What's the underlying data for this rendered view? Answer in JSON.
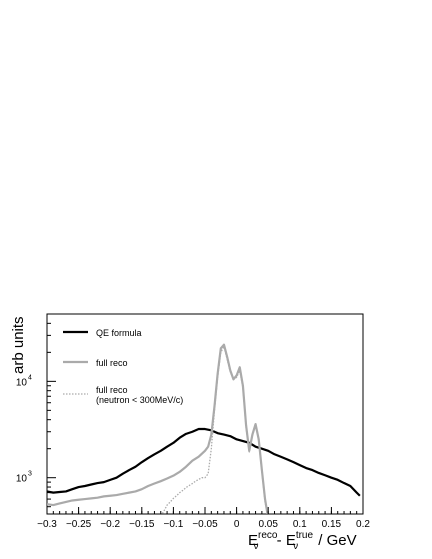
{
  "chart_data": {
    "type": "line",
    "title": "",
    "ylabel": "arb units",
    "xlabel": {
      "base": "E",
      "sub": "ν",
      "sup_reco": "reco",
      "sup_true": "true",
      "minus": " - ",
      "unit": " / GeV"
    },
    "x_scale": "linear",
    "y_scale": "log",
    "xlim": [
      -0.3,
      0.2
    ],
    "ylim": [
      420,
      50000
    ],
    "x_ticks": [
      -0.3,
      -0.25,
      -0.2,
      -0.15,
      -0.1,
      -0.05,
      0,
      0.05,
      0.1,
      0.15,
      0.2
    ],
    "x_tick_labels": [
      "−0.3",
      "−0.25",
      "−0.2",
      "−0.15",
      "−0.1",
      "−0.05",
      "0",
      "0.05",
      "0.1",
      "0.15",
      "0.2"
    ],
    "y_ticks": [
      {
        "value": 1000,
        "base": "10",
        "exp": "3"
      },
      {
        "value": 10000,
        "base": "10",
        "exp": "4"
      }
    ],
    "grid": false,
    "legend_position": "top-left",
    "legend": [
      {
        "label_lines": [
          "QE formula"
        ],
        "color": "#000000",
        "dash": "none",
        "width": 2.2
      },
      {
        "label_lines": [
          "full reco"
        ],
        "color": "#aaaaaa",
        "dash": "none",
        "width": 2.2
      },
      {
        "label_lines": [
          "full reco",
          "(neutron < 300MeV/c)"
        ],
        "color": "#aaaaaa",
        "dash": "1.5,1.5",
        "width": 1.3
      }
    ],
    "series": [
      {
        "name": "QE formula",
        "color": "#000000",
        "dash": "none",
        "width": 2.2,
        "x": [
          -0.3,
          -0.29,
          -0.28,
          -0.27,
          -0.26,
          -0.25,
          -0.24,
          -0.23,
          -0.22,
          -0.21,
          -0.2,
          -0.19,
          -0.18,
          -0.17,
          -0.16,
          -0.15,
          -0.14,
          -0.13,
          -0.12,
          -0.11,
          -0.1,
          -0.09,
          -0.08,
          -0.07,
          -0.06,
          -0.05,
          -0.04,
          -0.03,
          -0.02,
          -0.01,
          0,
          0.01,
          0.02,
          0.03,
          0.04,
          0.05,
          0.06,
          0.07,
          0.08,
          0.09,
          0.1,
          0.11,
          0.12,
          0.13,
          0.14,
          0.15,
          0.16,
          0.17,
          0.18,
          0.19,
          0.195
        ],
        "y": [
          720,
          700,
          710,
          720,
          760,
          800,
          820,
          850,
          880,
          900,
          950,
          1000,
          1100,
          1200,
          1300,
          1450,
          1600,
          1750,
          1900,
          2100,
          2300,
          2600,
          2850,
          3000,
          3200,
          3200,
          3100,
          2900,
          2800,
          2700,
          2500,
          2400,
          2300,
          2100,
          2000,
          1900,
          1750,
          1650,
          1550,
          1450,
          1350,
          1260,
          1200,
          1120,
          1060,
          1000,
          950,
          880,
          820,
          700,
          650
        ]
      },
      {
        "name": "full reco",
        "color": "#aaaaaa",
        "dash": "none",
        "width": 2.2,
        "x": [
          -0.3,
          -0.29,
          -0.28,
          -0.27,
          -0.26,
          -0.25,
          -0.24,
          -0.23,
          -0.22,
          -0.21,
          -0.2,
          -0.19,
          -0.18,
          -0.17,
          -0.16,
          -0.15,
          -0.14,
          -0.13,
          -0.12,
          -0.11,
          -0.1,
          -0.09,
          -0.08,
          -0.07,
          -0.06,
          -0.05,
          -0.045,
          -0.04,
          -0.035,
          -0.03,
          -0.025,
          -0.02,
          -0.015,
          -0.01,
          -0.005,
          0,
          0.005,
          0.01,
          0.015,
          0.02,
          0.025,
          0.03,
          0.035,
          0.04,
          0.045,
          0.05
        ],
        "y": [
          530,
          520,
          540,
          560,
          580,
          590,
          600,
          610,
          620,
          640,
          650,
          660,
          680,
          700,
          720,
          760,
          820,
          870,
          920,
          980,
          1050,
          1150,
          1300,
          1500,
          1650,
          1900,
          2100,
          2800,
          5500,
          12000,
          22000,
          24000,
          18000,
          13000,
          10500,
          11500,
          14000,
          9000,
          3500,
          1900,
          2800,
          3600,
          2500,
          1200,
          600,
          380
        ]
      },
      {
        "name": "full reco (neutron < 300MeV/c)",
        "color": "#aaaaaa",
        "dash": "1.5,1.5",
        "width": 1.3,
        "x": [
          -0.12,
          -0.115,
          -0.11,
          -0.105,
          -0.1,
          -0.095,
          -0.09,
          -0.085,
          -0.08,
          -0.075,
          -0.07,
          -0.065,
          -0.06,
          -0.055,
          -0.05,
          -0.045,
          -0.04,
          -0.035,
          -0.03,
          -0.025,
          -0.02,
          -0.015,
          -0.01,
          -0.005,
          0,
          0.005,
          0.01,
          0.015,
          0.02,
          0.025,
          0.03,
          0.035,
          0.04,
          0.045,
          0.05
        ],
        "y": [
          400,
          450,
          520,
          560,
          610,
          650,
          700,
          740,
          790,
          830,
          870,
          920,
          960,
          1000,
          1000,
          1100,
          2000,
          5000,
          11000,
          20000,
          23000,
          17000,
          12500,
          10500,
          11000,
          13000,
          8500,
          3300,
          1850,
          2700,
          3500,
          2400,
          1150,
          560,
          380
        ]
      }
    ]
  }
}
